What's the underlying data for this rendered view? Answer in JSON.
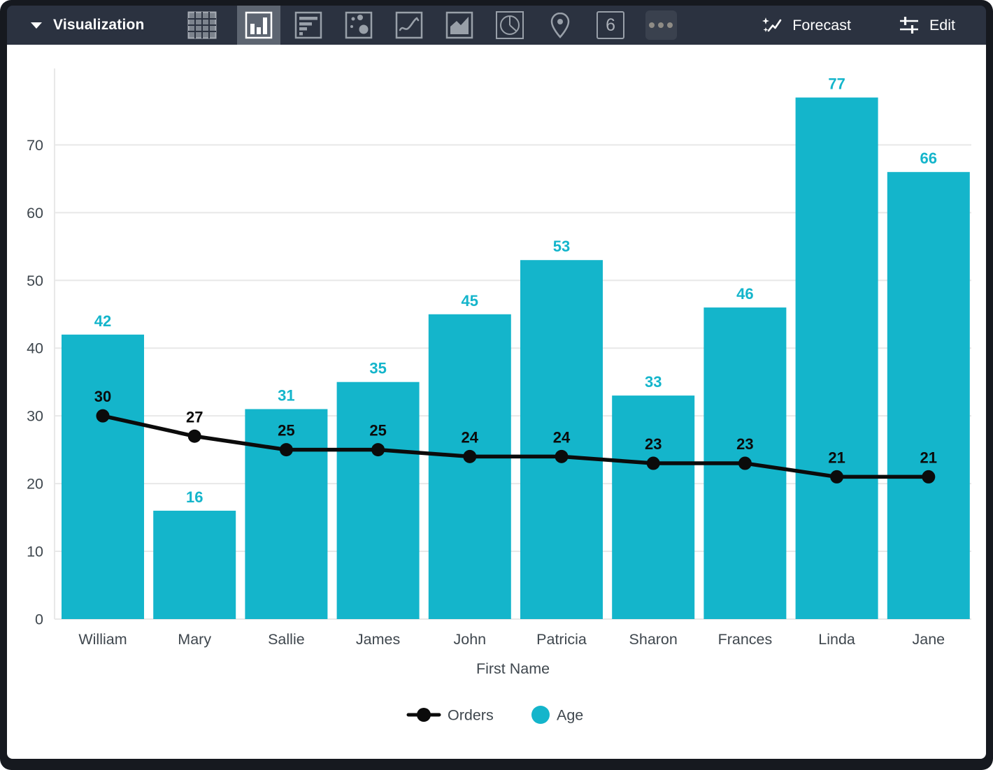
{
  "toolbar": {
    "title": "Visualization",
    "icons": [
      "table-icon",
      "column-chart-icon",
      "horizontal-bar-icon",
      "scatter-icon",
      "line-chart-icon",
      "area-chart-icon",
      "pie-chart-icon",
      "map-pin-icon",
      "single-value-icon",
      "more-icon"
    ],
    "selected_icon": "column-chart-icon",
    "single_value_glyph": "6",
    "forecast_label": "Forecast",
    "edit_label": "Edit"
  },
  "colors": {
    "toolbar_bg": "#2b3240",
    "selected_icon_bg": "#5d6571",
    "frame": "#16191f",
    "accent_teal": "#14b5cb",
    "line_black": "#0b0b0b",
    "axis_text": "#3f474e",
    "gridline": "#e8e8e8"
  },
  "chart_data": {
    "type": "bar",
    "subtype": "combo-column-line",
    "categories": [
      "William",
      "Mary",
      "Sallie",
      "James",
      "John",
      "Patricia",
      "Sharon",
      "Frances",
      "Linda",
      "Jane"
    ],
    "series": [
      {
        "name": "Orders",
        "type": "line",
        "color": "#0b0b0b",
        "values": [
          30,
          27,
          25,
          25,
          24,
          24,
          23,
          23,
          21,
          21
        ]
      },
      {
        "name": "Age",
        "type": "bar",
        "color": "#14b5cb",
        "values": [
          42,
          16,
          31,
          35,
          45,
          53,
          33,
          46,
          77,
          66
        ]
      }
    ],
    "title": "",
    "xlabel": "First Name",
    "ylabel": "",
    "ylim": [
      0,
      79
    ],
    "yticks": [
      0,
      10,
      20,
      30,
      40,
      50,
      60,
      70
    ],
    "grid": true,
    "data_labels": true,
    "legend_position": "bottom"
  }
}
